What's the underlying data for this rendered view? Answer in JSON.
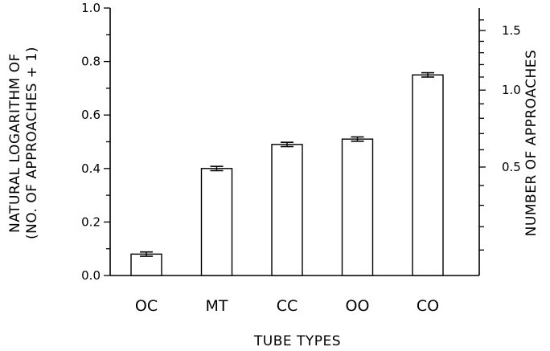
{
  "chart_data": {
    "type": "bar",
    "categories": [
      "OC",
      "MT",
      "CC",
      "OO",
      "CO"
    ],
    "values": [
      0.08,
      0.4,
      0.49,
      0.51,
      0.75
    ],
    "errors": [
      0.008,
      0.008,
      0.008,
      0.008,
      0.008
    ],
    "xlabel": "TUBE TYPES",
    "ylabel_line1": "NATURAL LOGARITHM OF",
    "ylabel_line2": "(NO. OF APPROACHES + 1)",
    "ylim": [
      0.0,
      1.0
    ],
    "yticks": [
      "0.0",
      "0.2",
      "0.4",
      "0.6",
      "0.8",
      "1.0"
    ],
    "y2label": "NUMBER OF APPROACHES",
    "y2ticks": [
      {
        "value": 0.5,
        "label": "0.5"
      },
      {
        "value": 1.0,
        "label": "1.0"
      },
      {
        "value": 1.5,
        "label": "1.5"
      }
    ],
    "y2_scale": "log(n+1)",
    "grid": false,
    "bar_fill": "#ffffff",
    "stroke_color": "#000000"
  }
}
